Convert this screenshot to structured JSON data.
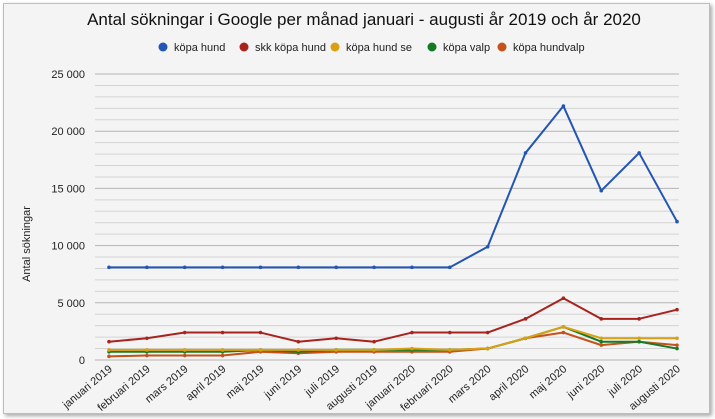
{
  "chart_data": {
    "type": "line",
    "title": "Antal sökningar i Google per månad januari - augusti år 2019 och år 2020",
    "xlabel": "",
    "ylabel": "Antal sökningar",
    "ylim": [
      0,
      25000
    ],
    "yticks": [
      0,
      5000,
      10000,
      15000,
      20000,
      25000
    ],
    "ytick_labels": [
      "0",
      "5 000",
      "10 000",
      "15 000",
      "20 000",
      "25 000"
    ],
    "grid": true,
    "legend_position": "top",
    "categories": [
      "januari 2019",
      "februari 2019",
      "mars 2019",
      "april 2019",
      "maj 2019",
      "juni 2019",
      "juli 2019",
      "augusti 2019",
      "januari 2020",
      "februari 2020",
      "mars 2020",
      "april 2020",
      "maj 2020",
      "juni 2020",
      "juli 2020",
      "augusti 2020"
    ],
    "series": [
      {
        "name": "köpa hund",
        "color": "#2255b5",
        "values": [
          8100,
          8100,
          8100,
          8100,
          8100,
          8100,
          8100,
          8100,
          8100,
          8100,
          9900,
          18100,
          22200,
          14800,
          18100,
          12100
        ]
      },
      {
        "name": "skk köpa hund",
        "color": "#a8231d",
        "values": [
          1600,
          1900,
          2400,
          2400,
          2400,
          1600,
          1900,
          1600,
          2400,
          2400,
          2400,
          3600,
          5400,
          3600,
          3600,
          4400
        ]
      },
      {
        "name": "köpa hund se",
        "color": "#d9a011",
        "values": [
          880,
          880,
          880,
          880,
          880,
          880,
          880,
          880,
          1000,
          880,
          1000,
          1900,
          2900,
          1900,
          1900,
          1900
        ]
      },
      {
        "name": "köpa valp",
        "color": "#167a24",
        "values": [
          720,
          720,
          720,
          720,
          880,
          720,
          880,
          880,
          880,
          880,
          1000,
          1900,
          2900,
          1600,
          1600,
          1000
        ]
      },
      {
        "name": "köpa hundvalp",
        "color": "#c6511a",
        "values": [
          320,
          390,
          390,
          390,
          720,
          590,
          720,
          720,
          720,
          720,
          1000,
          1900,
          2400,
          1300,
          1600,
          1300
        ]
      }
    ]
  }
}
